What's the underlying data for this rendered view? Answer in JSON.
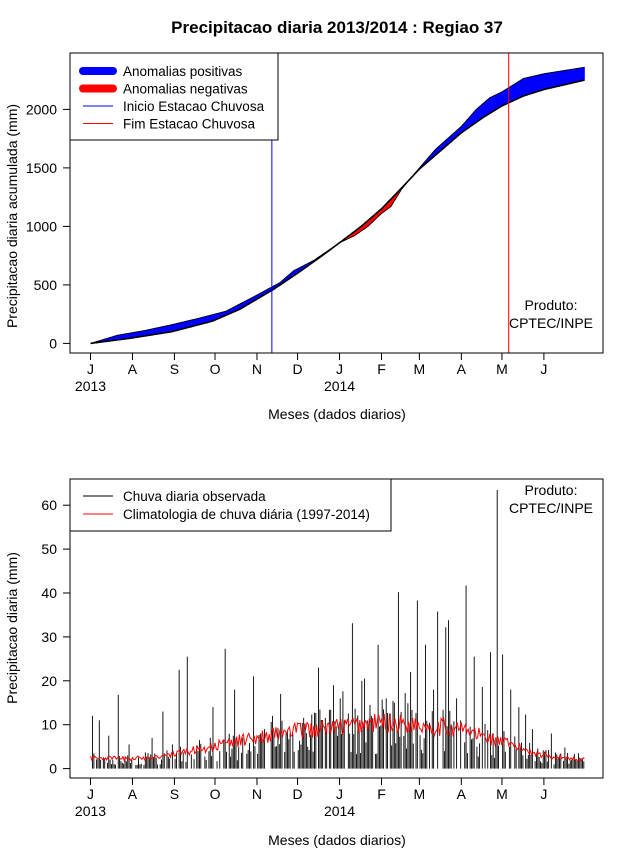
{
  "colors": {
    "positive": "#0000ff",
    "negative": "#ff0000",
    "observed": "#000000",
    "climatology": "#ff0000",
    "start_line": "#0000ff",
    "end_line": "#ff0000"
  },
  "chart_data": [
    {
      "type": "area",
      "title": "Precipitacao diaria 2013/2014 : Regiao 37",
      "xlabel": "Meses (dados diarios)",
      "ylabel": "Precipitacao diaria acumulada (mm)",
      "ylim": [
        0,
        2400
      ],
      "yticks": [
        0,
        500,
        1000,
        1500,
        2000
      ],
      "month_ticks": [
        {
          "day": 0,
          "label": "J"
        },
        {
          "day": 31,
          "label": "A"
        },
        {
          "day": 62,
          "label": "S"
        },
        {
          "day": 92,
          "label": "O"
        },
        {
          "day": 123,
          "label": "N"
        },
        {
          "day": 153,
          "label": "D"
        },
        {
          "day": 184,
          "label": "J"
        },
        {
          "day": 215,
          "label": "F"
        },
        {
          "day": 243,
          "label": "M"
        },
        {
          "day": 274,
          "label": "A"
        },
        {
          "day": 304,
          "label": "M"
        },
        {
          "day": 335,
          "label": "J"
        }
      ],
      "year_labels": [
        {
          "day": 0,
          "label": "2013"
        },
        {
          "day": 184,
          "label": "2014"
        }
      ],
      "x_days": 365,
      "legend": {
        "position": "top-left",
        "entries": [
          "Anomalias positivas",
          "Anomalias negativas",
          "Inicio Estacao Chuvosa",
          "Fim Estacao Chuvosa"
        ]
      },
      "rainy_season_start_day": 134,
      "rainy_season_end_day": 309,
      "note_line1": "Produto:",
      "note_line2": "CPTEC/INPE",
      "climatology_cumulative": [
        [
          0,
          0
        ],
        [
          30,
          45
        ],
        [
          60,
          100
        ],
        [
          90,
          190
        ],
        [
          110,
          290
        ],
        [
          135,
          460
        ],
        [
          153,
          600
        ],
        [
          170,
          740
        ],
        [
          184,
          860
        ],
        [
          200,
          1000
        ],
        [
          215,
          1150
        ],
        [
          230,
          1330
        ],
        [
          243,
          1490
        ],
        [
          260,
          1660
        ],
        [
          274,
          1800
        ],
        [
          290,
          1930
        ],
        [
          304,
          2030
        ],
        [
          320,
          2115
        ],
        [
          335,
          2170
        ],
        [
          365,
          2250
        ]
      ],
      "observed_cumulative": [
        [
          0,
          0
        ],
        [
          20,
          70
        ],
        [
          40,
          110
        ],
        [
          60,
          160
        ],
        [
          80,
          215
        ],
        [
          100,
          275
        ],
        [
          120,
          395
        ],
        [
          140,
          520
        ],
        [
          150,
          620
        ],
        [
          165,
          710
        ],
        [
          184,
          860
        ],
        [
          195,
          920
        ],
        [
          205,
          1000
        ],
        [
          215,
          1110
        ],
        [
          222,
          1170
        ],
        [
          230,
          1320
        ],
        [
          243,
          1500
        ],
        [
          255,
          1660
        ],
        [
          274,
          1855
        ],
        [
          285,
          2000
        ],
        [
          295,
          2100
        ],
        [
          304,
          2150
        ],
        [
          320,
          2265
        ],
        [
          335,
          2305
        ],
        [
          365,
          2360
        ]
      ]
    },
    {
      "type": "bar",
      "title": "",
      "xlabel": "Meses (dados diarios)",
      "ylabel": "Precipitacao diaria (mm)",
      "ylim": [
        0,
        65
      ],
      "yticks": [
        0,
        10,
        20,
        30,
        40,
        50,
        60
      ],
      "legend": {
        "position": "top-left",
        "entries": [
          "Chuva diaria observada",
          "Climatologia de chuva diária (1997-2014)"
        ]
      },
      "note_line1": "Produto:",
      "note_line2": "CPTEC/INPE",
      "climatology_profile": [
        [
          0,
          2.5
        ],
        [
          30,
          2.2
        ],
        [
          60,
          3.2
        ],
        [
          90,
          5.0
        ],
        [
          120,
          7.0
        ],
        [
          150,
          8.5
        ],
        [
          184,
          9.5
        ],
        [
          215,
          10.5
        ],
        [
          243,
          10.0
        ],
        [
          274,
          9.0
        ],
        [
          304,
          6.0
        ],
        [
          335,
          3.0
        ],
        [
          365,
          2.0
        ]
      ],
      "observed_peaks": [
        [
          1,
          12
        ],
        [
          6,
          11
        ],
        [
          13,
          7.5
        ],
        [
          20,
          16.8
        ],
        [
          28,
          5.5
        ],
        [
          45,
          7
        ],
        [
          53,
          13
        ],
        [
          60,
          5.5
        ],
        [
          65,
          22.5
        ],
        [
          71,
          25.5
        ],
        [
          80,
          6.5
        ],
        [
          90,
          14
        ],
        [
          99,
          27.3
        ],
        [
          106,
          18
        ],
        [
          112,
          7
        ],
        [
          120,
          21
        ],
        [
          128,
          9
        ],
        [
          134,
          12
        ],
        [
          140,
          17
        ],
        [
          147,
          8
        ],
        [
          155,
          5.5
        ],
        [
          163,
          12.3
        ],
        [
          168,
          23
        ],
        [
          174,
          9
        ],
        [
          179,
          19
        ],
        [
          184,
          16
        ],
        [
          186,
          17.6
        ],
        [
          193,
          33.1
        ],
        [
          200,
          20
        ],
        [
          202,
          20.5
        ],
        [
          207,
          12
        ],
        [
          212,
          28.2
        ],
        [
          218,
          16
        ],
        [
          224,
          15
        ],
        [
          227,
          40.2
        ],
        [
          232,
          17.2
        ],
        [
          236,
          22
        ],
        [
          241,
          38.3
        ],
        [
          247,
          28.2
        ],
        [
          253,
          18
        ],
        [
          256,
          35.8
        ],
        [
          262,
          32.2
        ],
        [
          264,
          33.8
        ],
        [
          270,
          16
        ],
        [
          277,
          41.7
        ],
        [
          283,
          25.5
        ],
        [
          289,
          18.6
        ],
        [
          295,
          26.5
        ],
        [
          300,
          63.5
        ],
        [
          304,
          26
        ],
        [
          310,
          18
        ],
        [
          316,
          14
        ],
        [
          321,
          12.3
        ],
        [
          326,
          9
        ],
        [
          340,
          8
        ],
        [
          350,
          4.8
        ],
        [
          360,
          3.5
        ]
      ]
    }
  ]
}
